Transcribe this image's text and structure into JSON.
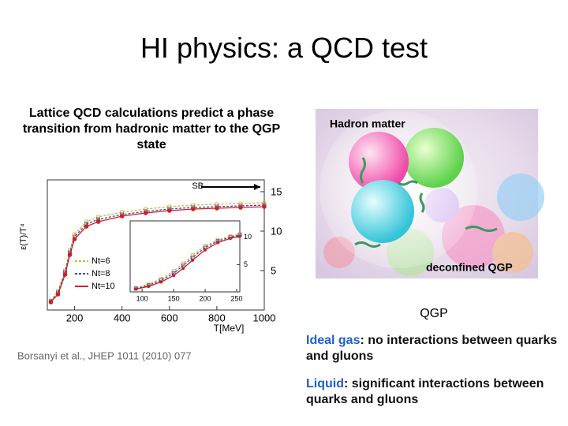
{
  "header": {
    "title": "HI physics: a QCD test"
  },
  "left_text": "Lattice QCD calculations predict a phase transition from hadronic matter to the QGP state",
  "figure": {
    "x_label": "T[MeV]",
    "y_label": "ε(T)/T⁴",
    "xlim": [
      85,
      1000
    ],
    "ylim": [
      0,
      16.5
    ],
    "xticks": [
      200,
      400,
      600,
      800,
      1000
    ],
    "yticks": [
      5,
      10,
      15
    ],
    "sb_label": "SB",
    "sb_level": 15.6,
    "x": [
      100,
      130,
      160,
      180,
      200,
      250,
      300,
      400,
      500,
      600,
      700,
      800,
      900,
      1000
    ],
    "series": [
      {
        "name": "Nt=6",
        "color": "#e0b030",
        "values": [
          1.2,
          2.4,
          5.0,
          7.6,
          9.6,
          11.2,
          11.8,
          12.4,
          12.8,
          13.1,
          13.3,
          13.4,
          13.5,
          13.6
        ]
      },
      {
        "name": "Nt=8",
        "color": "#3050c0",
        "values": [
          1.1,
          2.2,
          4.8,
          7.3,
          9.3,
          10.9,
          11.5,
          12.1,
          12.5,
          12.8,
          13.0,
          13.1,
          13.2,
          13.3
        ]
      },
      {
        "name": "Nt=10",
        "color": "#d02020",
        "values": [
          1.0,
          2.0,
          4.5,
          7.0,
          9.0,
          10.6,
          11.2,
          11.9,
          12.3,
          12.6,
          12.8,
          12.9,
          13.0,
          13.1
        ]
      }
    ],
    "inset": {
      "xlim": [
        81,
        255
      ],
      "ylim": [
        0,
        13
      ],
      "xticks": [
        100,
        150,
        200,
        250
      ],
      "yticks": [
        5,
        10
      ],
      "x": [
        90,
        110,
        130,
        150,
        165,
        180,
        200,
        220,
        240,
        255
      ],
      "series": [
        {
          "values": [
            0.7,
            1.4,
            2.4,
            3.8,
            5.2,
            6.7,
            8.4,
            9.5,
            10.2,
            10.6
          ]
        },
        {
          "values": [
            0.6,
            1.2,
            2.1,
            3.4,
            4.8,
            6.3,
            8.1,
            9.3,
            10.0,
            10.4
          ]
        },
        {
          "values": [
            0.5,
            1.0,
            1.8,
            3.0,
            4.3,
            5.8,
            7.7,
            9.0,
            9.8,
            10.2
          ]
        }
      ]
    },
    "citation": "Borsanyi et al., JHEP 1011 (2010) 077"
  },
  "illustration": {
    "top_label": "Hadron matter",
    "bottom_label": "deconfined QGP",
    "caption": "QGP"
  },
  "notes": [
    {
      "term": "Ideal gas",
      "text": ": no interactions between quarks and gluons"
    },
    {
      "term": "Liquid",
      "text": ": significant interactions between quarks and gluons"
    }
  ]
}
